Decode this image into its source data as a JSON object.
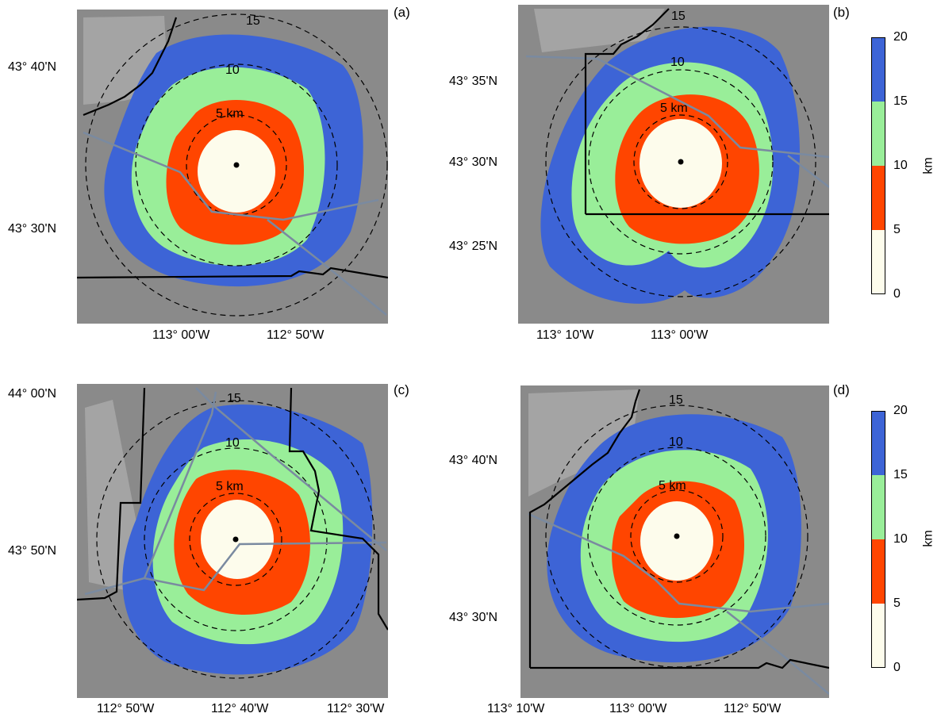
{
  "panels": [
    {
      "id": "a",
      "letter": "(a)",
      "lat_labels": [
        "43° 40'N",
        "43° 30'N"
      ],
      "lon_labels": [
        "113° 00'W",
        "112° 50'W"
      ],
      "ring_labels": [
        "15",
        "10",
        "5 km"
      ]
    },
    {
      "id": "b",
      "letter": "(b)",
      "lat_labels": [
        "43° 35'N",
        "43° 30'N",
        "43° 25'N"
      ],
      "lon_labels": [
        "113° 10'W",
        "113° 00'W"
      ],
      "ring_labels": [
        "15",
        "10",
        "5 km"
      ]
    },
    {
      "id": "c",
      "letter": "(c)",
      "lat_labels": [
        "44° 00'N",
        "43° 50'N"
      ],
      "lon_labels": [
        "112° 50'W",
        "112° 40'W",
        "112° 30'W"
      ],
      "ring_labels": [
        "15",
        "10",
        "5 km"
      ]
    },
    {
      "id": "d",
      "letter": "(d)",
      "lat_labels": [
        "43° 40'N",
        "43° 30'N"
      ],
      "lon_labels": [
        "113° 10'W",
        "113° 00'W",
        "112° 50'W"
      ],
      "ring_labels": [
        "15",
        "10",
        "5 km"
      ]
    }
  ],
  "colorbar": {
    "ticks": [
      "20",
      "15",
      "10",
      "5",
      "0"
    ],
    "unit": "km",
    "bands": [
      {
        "range": "15-20",
        "color": "#3d64d6"
      },
      {
        "range": "10-15",
        "color": "#99ee99"
      },
      {
        "range": "5-10",
        "color": "#ff4500"
      },
      {
        "range": "0-5",
        "color": "#fdfcec"
      }
    ]
  },
  "colors": {
    "terrain": "#8a8a8a",
    "band_20": "#3d64d6",
    "band_15": "#99ee99",
    "band_10": "#ff4500",
    "band_5": "#fdfcec",
    "road": "#7a8aa0",
    "boundary": "#000000"
  }
}
